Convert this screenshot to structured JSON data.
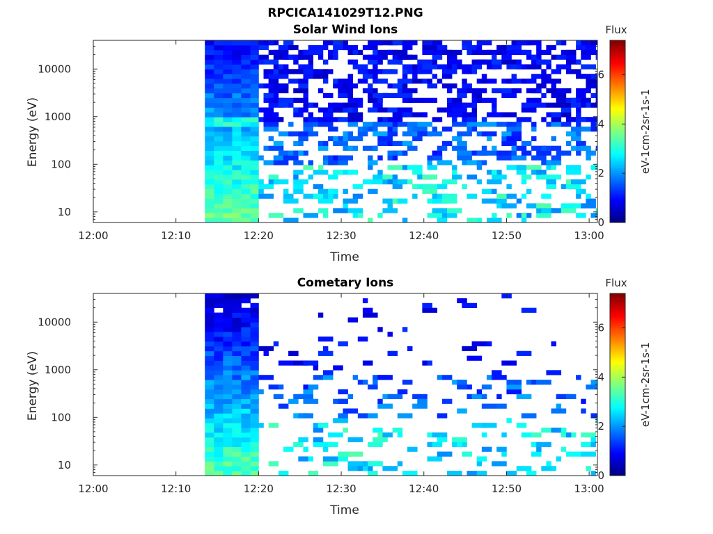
{
  "figure": {
    "title": "RPCICA141029T12.PNG"
  },
  "colormap": {
    "name": "jet",
    "stops": [
      "#00007f",
      "#0000ff",
      "#007fff",
      "#00ffff",
      "#7fff7f",
      "#ffff00",
      "#ff7f00",
      "#ff0000",
      "#7f0000"
    ]
  },
  "chart_data": [
    {
      "type": "heatmap",
      "title": "Solar Wind Ions",
      "xlabel": "Time",
      "ylabel": "Energy (eV)",
      "x_ticks": [
        "12:00",
        "12:10",
        "12:20",
        "12:30",
        "12:40",
        "12:50",
        "13:00"
      ],
      "x_range": [
        "12:00",
        "13:01"
      ],
      "y_scale": "log",
      "y_ticks": [
        "10",
        "100",
        "1000",
        "10000"
      ],
      "y_range": [
        6,
        40000
      ],
      "colorbar": {
        "title": "Flux",
        "unit": "eV-1cm-2sr-1s-1",
        "ticks": [
          "0",
          "2",
          "4",
          "6"
        ],
        "range": [
          0,
          7.4
        ]
      },
      "data_start": "12:13.5",
      "dense_end": "12:20",
      "data_end": "13:01",
      "description": "Dense continuous spectrum 12:13.5-12:20 with flux ~1 at high energy rising to ~3.5 near 10 eV; sparse patchy bins after 12:20"
    },
    {
      "type": "heatmap",
      "title": "Cometary Ions",
      "xlabel": "Time",
      "ylabel": "Energy (eV)",
      "x_ticks": [
        "12:00",
        "12:10",
        "12:20",
        "12:30",
        "12:40",
        "12:50",
        "13:00"
      ],
      "x_range": [
        "12:00",
        "13:01"
      ],
      "y_scale": "log",
      "y_ticks": [
        "10",
        "100",
        "1000",
        "10000"
      ],
      "y_range": [
        6,
        40000
      ],
      "colorbar": {
        "title": "Flux",
        "unit": "eV-1cm-2sr-1s-1",
        "ticks": [
          "0",
          "2",
          "4",
          "6"
        ],
        "range": [
          0,
          7.4
        ]
      },
      "data_start": "12:13.5",
      "dense_end": "12:20",
      "data_end": "13:01",
      "description": "Dense continuous spectrum 12:13.5-12:20; sparse bins afterwards, mostly below 1000 eV"
    }
  ]
}
